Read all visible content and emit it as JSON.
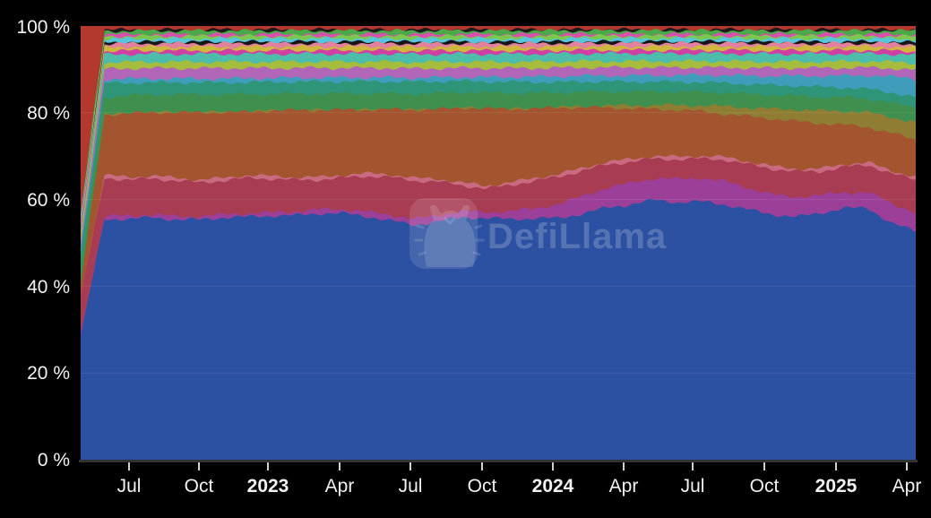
{
  "watermark": {
    "text": "DefiLlama"
  },
  "chart_data": {
    "type": "area",
    "stacking": "percent",
    "title": "",
    "xlabel": "",
    "ylabel": "",
    "legend": "none",
    "grid": "horizontal",
    "background_color": "#000000",
    "text_color": "#f2f2f2",
    "y_range": [
      0,
      100
    ],
    "y_tick_labels": [
      "0 %",
      "20 %",
      "40 %",
      "60 %",
      "80 %",
      "100 %"
    ],
    "x_tick_labels": [
      "Jul",
      "Oct",
      "2023",
      "Apr",
      "Jul",
      "Oct",
      "2024",
      "Apr",
      "Jul",
      "Oct",
      "2025",
      "Apr"
    ],
    "x_range": [
      "May 2022",
      "Apr 2025"
    ],
    "x_samples_months": 36,
    "note": "values are relative shares per month, normalized to 100% when stacked; series listed bottom to top",
    "series": [
      {
        "name": "blue",
        "color": "#2c51a2",
        "values": [
          40,
          60,
          60.5,
          61,
          60.5,
          60.5,
          61,
          61.5,
          61.5,
          62,
          62.5,
          62.5,
          61.5,
          60.5,
          58.5,
          60,
          61.5,
          61,
          60.5,
          61,
          61.5,
          63,
          64.5,
          65.5,
          66.5,
          66,
          66.5,
          65.5,
          63.5,
          62,
          61.5,
          62.5,
          64,
          64.5,
          59.5,
          55.5
        ]
      },
      {
        "name": "purple",
        "color": "#9c3f99",
        "values": [
          1,
          0.8,
          0.8,
          0.8,
          0.8,
          0.8,
          0.8,
          0.8,
          0.8,
          1,
          1,
          1,
          1.2,
          1.5,
          1.5,
          1.5,
          1.5,
          1.5,
          2,
          2.5,
          3.5,
          4.5,
          5,
          5.5,
          5.5,
          6,
          6,
          6,
          5.5,
          5,
          5,
          4.5,
          4,
          4,
          5,
          4.5
        ]
      },
      {
        "name": "crimson",
        "color": "#a83c52",
        "values": [
          12,
          9.5,
          9,
          9,
          9,
          8.5,
          8.5,
          9,
          8.5,
          8,
          7.5,
          8,
          9,
          9.5,
          9.5,
          8.5,
          6.5,
          6,
          6.5,
          7,
          7,
          6.5,
          6,
          5.5,
          5,
          5,
          5,
          5.5,
          6,
          6.5,
          6.5,
          6,
          6.5,
          7,
          7.5,
          8
        ]
      },
      {
        "name": "pink",
        "color": "#c96a80",
        "values": 0.7
      },
      {
        "name": "sienna",
        "color": "#a2552e",
        "values": [
          3,
          15,
          16,
          16,
          16.5,
          17,
          16.5,
          16,
          16.5,
          17,
          17,
          16.5,
          16,
          16.5,
          17,
          17.5,
          19,
          19.5,
          18.5,
          17.5,
          17,
          15.5,
          14,
          13,
          12,
          12,
          11.5,
          11,
          11.5,
          12,
          12,
          11.5,
          10,
          9,
          9.5,
          9
        ]
      },
      {
        "name": "olive",
        "color": "#8f7d33",
        "values": [
          0,
          0,
          0,
          0,
          0,
          0,
          0,
          0,
          0,
          0,
          0,
          0,
          0,
          0,
          0,
          0,
          0,
          0,
          0,
          0,
          0,
          0.3,
          0.5,
          0.8,
          1,
          1.2,
          1.5,
          2,
          2.2,
          2.5,
          3,
          3.2,
          3.5,
          3.8,
          4,
          4.2
        ]
      },
      {
        "name": "green",
        "color": "#3f8f4f",
        "values": [
          4.5,
          4.5,
          4.5,
          4.5,
          4.5,
          4.5,
          4.5,
          4.5,
          4.2,
          4.2,
          4.2,
          4.2,
          4.2,
          4,
          4,
          4,
          4,
          4,
          4,
          4,
          3.8,
          3.8,
          3.6,
          3.6,
          3.5,
          3.5,
          3.5,
          3.5,
          3.5,
          3.5,
          3.5,
          3.5,
          3.5,
          3.5,
          3.6,
          3.6
        ]
      },
      {
        "name": "sea-green",
        "color": "#2f9578",
        "values": [
          6,
          3.5,
          3.2,
          3,
          3,
          3,
          3,
          3,
          3,
          3,
          3,
          3,
          3,
          3,
          3,
          3,
          2.8,
          2.8,
          2.8,
          2.8,
          2.6,
          2.6,
          2.5,
          2.5,
          2.5,
          2.5,
          2.5,
          2.5,
          2.5,
          2.5,
          2.5,
          2.5,
          2.5,
          2.5,
          2.6,
          2.6
        ]
      },
      {
        "name": "steel-teal",
        "color": "#3f9cbb",
        "values": [
          1,
          1,
          1,
          1,
          1,
          1,
          1,
          1,
          1,
          1,
          1,
          1,
          1,
          1,
          1,
          1,
          1,
          1.1,
          1.2,
          1.3,
          1.5,
          1.5,
          1.5,
          1.6,
          1.6,
          1.7,
          1.8,
          2,
          2.1,
          2.3,
          2.5,
          2.8,
          3,
          3.5,
          4,
          4.5
        ]
      },
      {
        "name": "orchid",
        "color": "#b266b8",
        "values": [
          2.5,
          2.5,
          2.6,
          2.6,
          2.6,
          2.6,
          2.6,
          2.6,
          2.5,
          2.5,
          2.5,
          2.4,
          2.4,
          2.4,
          2.3,
          2.3,
          2.3,
          2.3,
          2.2,
          2.2,
          2.2,
          2.1,
          2.1,
          2.1,
          2,
          2,
          2,
          2,
          2,
          2,
          2,
          2,
          2,
          2,
          2.1,
          2.1
        ]
      },
      {
        "name": "yellow-green",
        "color": "#a6bc3c",
        "values": 1.6
      },
      {
        "name": "teal",
        "color": "#4cbcab",
        "values": 2.0
      },
      {
        "name": "magenta",
        "color": "#cf3fa4",
        "values": 0.85
      },
      {
        "name": "gold",
        "color": "#cdb83c",
        "values": 0.95
      },
      {
        "name": "light-pink",
        "color": "#e2809d",
        "values": 0.85
      },
      {
        "name": "dark-fleck-1",
        "color": "#161616",
        "values": 0.4
      },
      {
        "name": "cyan",
        "color": "#56c4d9",
        "values": 0.8
      },
      {
        "name": "lime",
        "color": "#7cc84e",
        "values": 0.65
      },
      {
        "name": "magenta-2",
        "color": "#d84fae",
        "values": 0.5
      },
      {
        "name": "green-2",
        "color": "#4ba94a",
        "values": 0.85
      },
      {
        "name": "dark-fleck-2",
        "color": "#1c1c1c",
        "values": 0.3
      },
      {
        "name": "red",
        "color": "#b3392e",
        "values": [
          60,
          1,
          0.9,
          0.9,
          0.9,
          0.9,
          0.9,
          0.9,
          0.9,
          0.9,
          0.9,
          0.9,
          0.9,
          0.9,
          0.9,
          0.9,
          0.9,
          0.9,
          0.9,
          0.9,
          0.9,
          0.9,
          0.9,
          0.9,
          0.9,
          0.9,
          0.9,
          0.9,
          0.9,
          0.9,
          0.9,
          0.9,
          0.9,
          0.9,
          0.9,
          0.9
        ]
      }
    ]
  }
}
